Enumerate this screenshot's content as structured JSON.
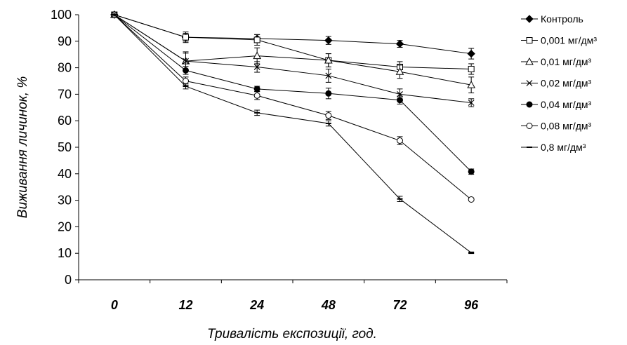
{
  "chart_data": {
    "type": "line",
    "categories": [
      "0",
      "12",
      "24",
      "48",
      "72",
      "96"
    ],
    "xlabel": "Тривалість експозиції, год.",
    "ylabel": "Виживання личинок, %",
    "ylim": [
      0,
      100
    ],
    "yticks": [
      "0",
      "10",
      "20",
      "30",
      "40",
      "50",
      "60",
      "70",
      "80",
      "90",
      "100"
    ],
    "grid": false,
    "legend_position": "right",
    "series": [
      {
        "name": "Контроль",
        "marker": "diamond-filled",
        "values": [
          100,
          91.5,
          91,
          90.3,
          89,
          85.3
        ],
        "errors": [
          0.5,
          1.5,
          1.5,
          1.5,
          1.3,
          2
        ]
      },
      {
        "name": "0,001 мг/дм³",
        "marker": "square-open",
        "values": [
          100,
          91.5,
          90.5,
          82.8,
          80.3,
          79.5
        ],
        "errors": [
          0.5,
          2,
          2,
          2.5,
          2,
          2
        ]
      },
      {
        "name": "0,01 мг/дм³",
        "marker": "triangle-open",
        "values": [
          100,
          82.5,
          84.5,
          82.8,
          78.5,
          73.5
        ],
        "errors": [
          0.5,
          3.5,
          3,
          2.5,
          2.5,
          3
        ]
      },
      {
        "name": "0,02 мг/дм³",
        "marker": "x",
        "values": [
          100,
          82.5,
          80.3,
          77,
          70,
          66.8
        ],
        "errors": [
          0.5,
          3,
          2,
          2.5,
          2,
          1.5
        ]
      },
      {
        "name": "0,04 мг/дм³",
        "marker": "circle-filled",
        "values": [
          100,
          79,
          72,
          70.3,
          67.8,
          40.8
        ],
        "errors": [
          0.5,
          1.5,
          1,
          2,
          1.5,
          1
        ]
      },
      {
        "name": "0,08 мг/дм³",
        "marker": "circle-open",
        "values": [
          100,
          75,
          69.5,
          62,
          52.5,
          30.3
        ],
        "errors": [
          0.5,
          1.5,
          1.5,
          1.5,
          1.5,
          0.5
        ]
      },
      {
        "name": "0,8 мг/дм³",
        "marker": "dash",
        "values": [
          100,
          73,
          63,
          59,
          30.5,
          10.2
        ],
        "errors": [
          0.5,
          1,
          1,
          1,
          1,
          0.3
        ]
      }
    ]
  }
}
